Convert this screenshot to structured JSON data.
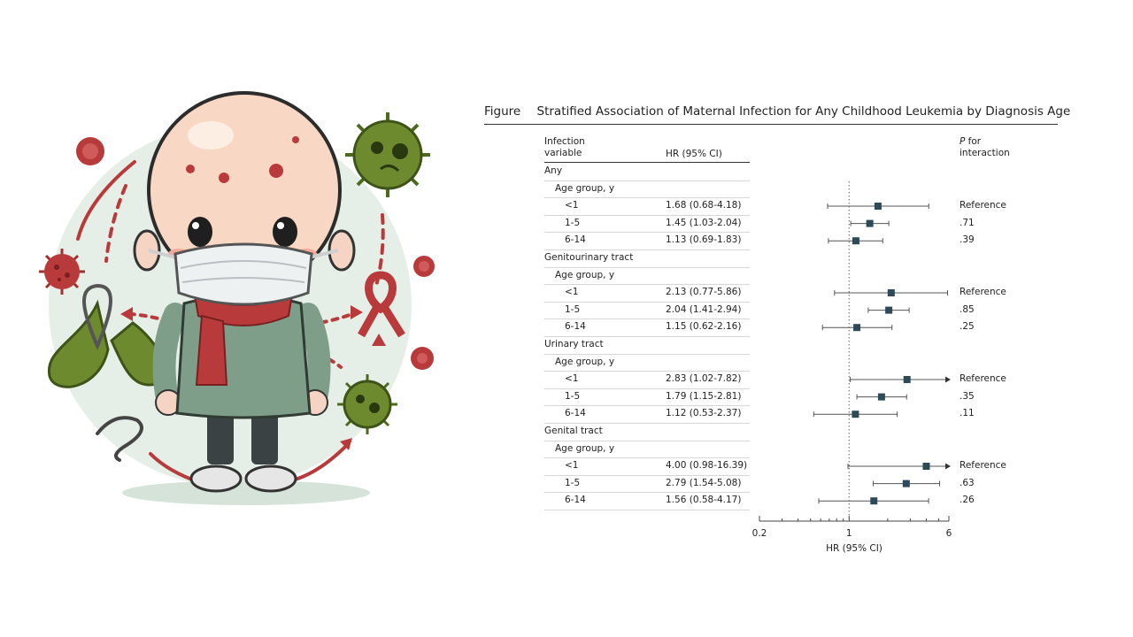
{
  "figure": {
    "label": "Figure",
    "title": "Stratified Association of Maternal Infection for Any Childhood Leukemia by Diagnosis Age"
  },
  "columns": {
    "variable_line1": "Infection",
    "variable_line2": "variable",
    "hr": "HR (95% CI)",
    "p_line1_italic": "P",
    "p_line1_rest": " for",
    "p_line2": "interaction"
  },
  "rows": [
    {
      "label": "Any",
      "level": 0
    },
    {
      "label": "Age group, y",
      "level": 1
    },
    {
      "label": "<1",
      "level": 2,
      "hr_text": "1.68 (0.68-4.18)",
      "p": "Reference"
    },
    {
      "label": "1-5",
      "level": 2,
      "hr_text": "1.45 (1.03-2.04)",
      "p": ".71"
    },
    {
      "label": "6-14",
      "level": 2,
      "hr_text": "1.13 (0.69-1.83)",
      "p": ".39"
    },
    {
      "label": "Genitourinary tract",
      "level": 0
    },
    {
      "label": "Age group, y",
      "level": 1
    },
    {
      "label": "<1",
      "level": 2,
      "hr_text": "2.13 (0.77-5.86)",
      "p": "Reference"
    },
    {
      "label": "1-5",
      "level": 2,
      "hr_text": "2.04 (1.41-2.94)",
      "p": ".85"
    },
    {
      "label": "6-14",
      "level": 2,
      "hr_text": "1.15 (0.62-2.16)",
      "p": ".25"
    },
    {
      "label": "Urinary tract",
      "level": 0
    },
    {
      "label": "Age group, y",
      "level": 1
    },
    {
      "label": "<1",
      "level": 2,
      "hr_text": "2.83 (1.02-7.82)",
      "p": "Reference"
    },
    {
      "label": "1-5",
      "level": 2,
      "hr_text": "1.79 (1.15-2.81)",
      "p": ".35"
    },
    {
      "label": "6-14",
      "level": 2,
      "hr_text": "1.12 (0.53-2.37)",
      "p": ".11"
    },
    {
      "label": "Genital tract",
      "level": 0
    },
    {
      "label": "Age group, y",
      "level": 1
    },
    {
      "label": "<1",
      "level": 2,
      "hr_text": "4.00 (0.98-16.39)",
      "p": "Reference"
    },
    {
      "label": "1-5",
      "level": 2,
      "hr_text": "2.79 (1.54-5.08)",
      "p": ".63"
    },
    {
      "label": "6-14",
      "level": 2,
      "hr_text": "1.56 (0.58-4.17)",
      "p": ".26"
    }
  ],
  "chart_data": {
    "type": "scatter",
    "subtype": "forest-plot",
    "xlabel": "HR (95% CI)",
    "x_scale": "log",
    "xlim": [
      0.2,
      6
    ],
    "ticks": [
      "0.2",
      "1",
      "6"
    ],
    "reference_line": 1,
    "categories": [
      "Any <1",
      "Any 1-5",
      "Any 6-14",
      "Genitourinary tract <1",
      "Genitourinary tract 1-5",
      "Genitourinary tract 6-14",
      "Urinary tract <1",
      "Urinary tract 1-5",
      "Urinary tract 6-14",
      "Genital tract <1",
      "Genital tract 1-5",
      "Genital tract 6-14"
    ],
    "estimates": [
      1.68,
      1.45,
      1.13,
      2.13,
      2.04,
      1.15,
      2.83,
      1.79,
      1.12,
      4.0,
      2.79,
      1.56
    ],
    "lower": [
      0.68,
      1.03,
      0.69,
      0.77,
      1.41,
      0.62,
      1.02,
      1.15,
      0.53,
      0.98,
      1.54,
      0.58
    ],
    "upper": [
      4.18,
      2.04,
      1.83,
      5.86,
      2.94,
      2.16,
      7.82,
      2.81,
      2.37,
      16.39,
      5.08,
      4.17
    ]
  },
  "colors": {
    "marker": "#2c4a57",
    "whisker": "#555555",
    "accent_red": "#b83a3a",
    "virus_green": "#6e8a2e"
  },
  "illustration": {
    "icons": [
      "child-figure",
      "face-mask-icon",
      "scarf-icon",
      "virus-icon",
      "awareness-ribbon-icon",
      "kidney-icon",
      "worm-icon",
      "red-cell-icon"
    ]
  }
}
